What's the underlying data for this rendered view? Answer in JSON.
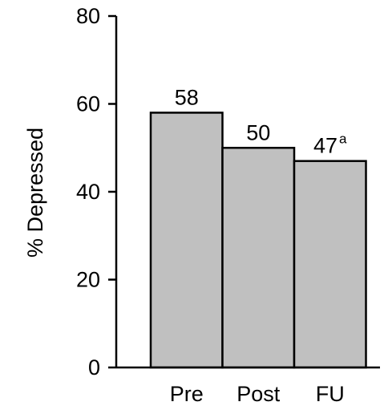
{
  "chart_data": {
    "type": "bar",
    "categories": [
      "Pre",
      "Post",
      "FU"
    ],
    "values": [
      58,
      50,
      47
    ],
    "data_labels": [
      {
        "text": "58",
        "superscript": ""
      },
      {
        "text": "50",
        "superscript": ""
      },
      {
        "text": "47",
        "superscript": "a"
      }
    ],
    "title": "",
    "xlabel": "",
    "ylabel": "% Depressed",
    "ylim": [
      0,
      80
    ],
    "yticks": [
      0,
      20,
      40,
      60,
      80
    ],
    "grid": false,
    "legend": "none",
    "bar_color": "#c0c0c0",
    "bar_edge_color": "#000000"
  }
}
